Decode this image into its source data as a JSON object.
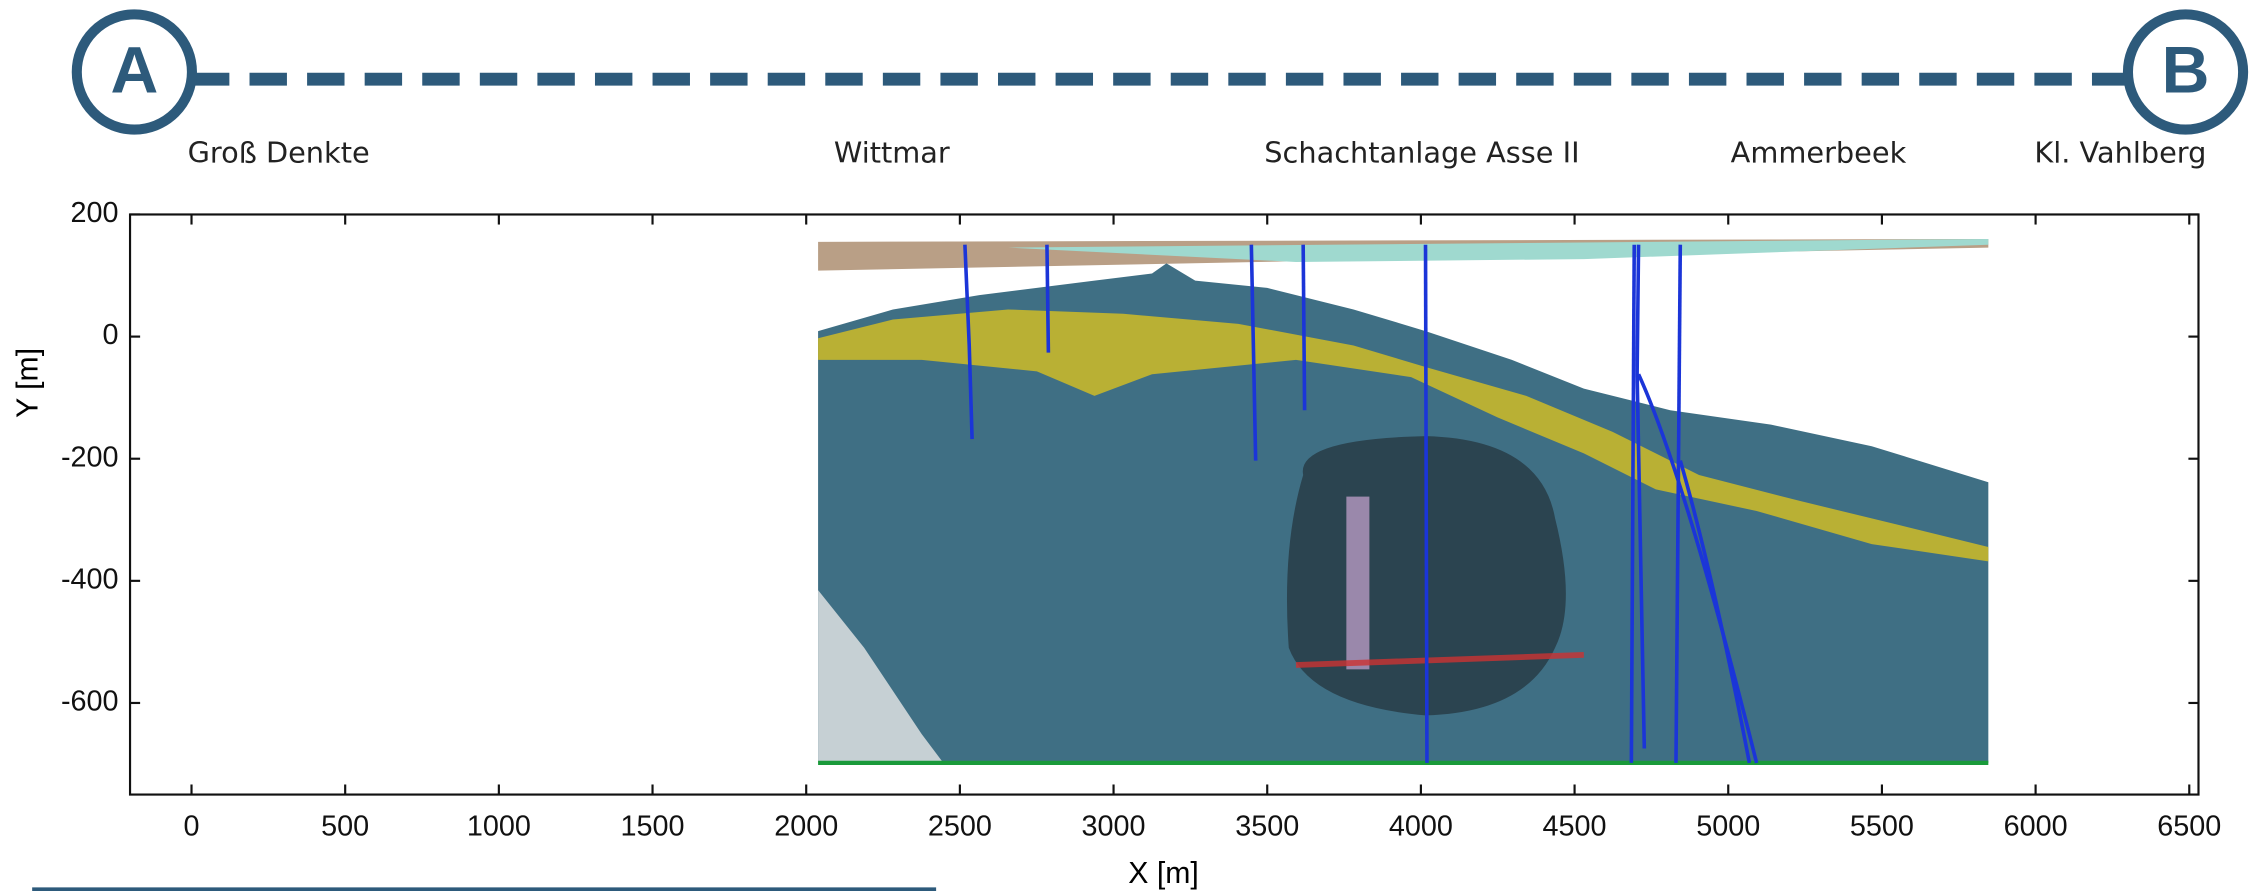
{
  "profile": {
    "start": "A",
    "end": "B",
    "places": [
      "Groß Denkte",
      "Wittmar",
      "Schachtanlage Asse II",
      "Ammerbeek",
      "Kl. Vahlberg"
    ]
  },
  "chart_data": {
    "type": "section",
    "xlabel": "X [m]",
    "ylabel": "Y [m]",
    "xlim": [
      -200,
      6530
    ],
    "ylim": [
      -750,
      200
    ],
    "xticks": [
      0,
      500,
      1000,
      1500,
      2000,
      2500,
      3000,
      3500,
      4000,
      4500,
      5000,
      5500,
      6000,
      6500
    ],
    "yticks": [
      -600,
      -400,
      -200,
      0,
      200
    ]
  }
}
